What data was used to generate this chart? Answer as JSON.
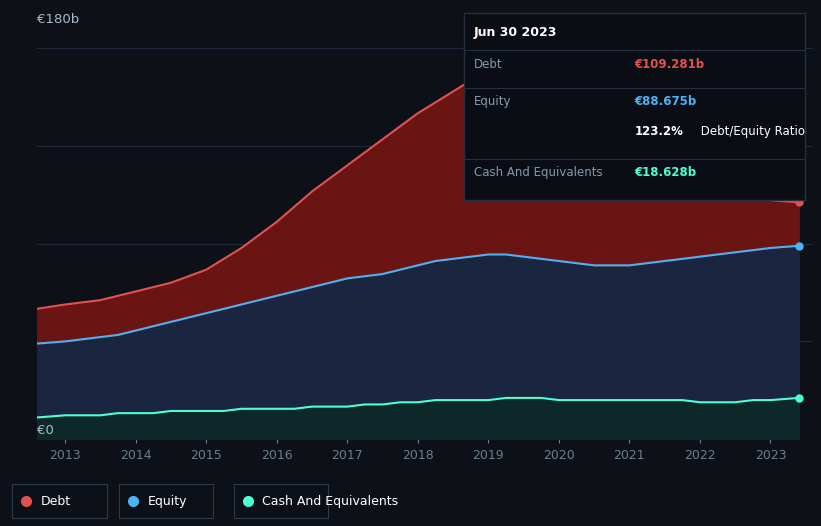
{
  "background_color": "#0d1117",
  "debt_color": "#e05252",
  "equity_color": "#4ab3f4",
  "cash_color": "#4dffd2",
  "debt_fill": "#6b1414",
  "equity_fill": "#1a2540",
  "cash_fill": "#0d2828",
  "grid_color": "#1e2a3a",
  "tick_color": "#6b7d8e",
  "ylabel_top": "€180b",
  "ylabel_bottom": "€0",
  "x_ticks": [
    2013,
    2014,
    2015,
    2016,
    2017,
    2018,
    2019,
    2020,
    2021,
    2022,
    2023
  ],
  "years": [
    2012.6,
    2013.0,
    2013.25,
    2013.5,
    2013.75,
    2014.0,
    2014.25,
    2014.5,
    2014.75,
    2015.0,
    2015.25,
    2015.5,
    2015.75,
    2016.0,
    2016.25,
    2016.5,
    2016.75,
    2017.0,
    2017.25,
    2017.5,
    2017.75,
    2018.0,
    2018.25,
    2018.5,
    2018.75,
    2019.0,
    2019.25,
    2019.5,
    2019.75,
    2020.0,
    2020.25,
    2020.5,
    2020.75,
    2021.0,
    2021.25,
    2021.5,
    2021.75,
    2022.0,
    2022.25,
    2022.5,
    2022.75,
    2023.0,
    2023.4
  ],
  "debt": [
    60,
    62,
    63,
    64,
    66,
    68,
    70,
    72,
    75,
    78,
    83,
    88,
    94,
    100,
    107,
    114,
    120,
    126,
    132,
    138,
    144,
    150,
    155,
    160,
    165,
    173,
    176,
    174,
    170,
    168,
    164,
    158,
    153,
    148,
    145,
    142,
    138,
    133,
    128,
    122,
    116,
    110,
    109
  ],
  "equity": [
    44,
    45,
    46,
    47,
    48,
    50,
    52,
    54,
    56,
    58,
    60,
    62,
    64,
    66,
    68,
    70,
    72,
    74,
    75,
    76,
    78,
    80,
    82,
    83,
    84,
    85,
    85,
    84,
    83,
    82,
    81,
    80,
    80,
    80,
    81,
    82,
    83,
    84,
    85,
    86,
    87,
    88,
    89
  ],
  "cash": [
    10,
    11,
    11,
    11,
    12,
    12,
    12,
    13,
    13,
    13,
    13,
    14,
    14,
    14,
    14,
    15,
    15,
    15,
    16,
    16,
    17,
    17,
    18,
    18,
    18,
    18,
    19,
    19,
    19,
    18,
    18,
    18,
    18,
    18,
    18,
    18,
    18,
    17,
    17,
    17,
    18,
    18,
    19
  ],
  "tooltip_title": "Jun 30 2023",
  "tooltip_debt_label": "Debt",
  "tooltip_debt_value": "€109.281b",
  "tooltip_equity_label": "Equity",
  "tooltip_equity_value": "€88.675b",
  "tooltip_ratio": "123.2% Debt/Equity Ratio",
  "tooltip_cash_label": "Cash And Equivalents",
  "tooltip_cash_value": "€18.628b",
  "legend_items": [
    "Debt",
    "Equity",
    "Cash And Equivalents"
  ]
}
